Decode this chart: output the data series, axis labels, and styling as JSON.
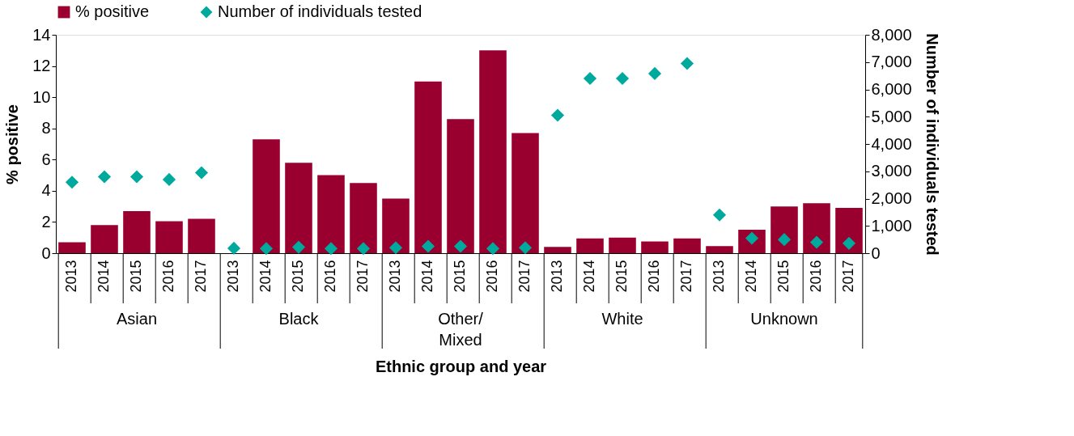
{
  "chart_data": {
    "type": "bar",
    "xlabel": "Ethnic group and year",
    "ylabel": "% positive",
    "y2label": "Number of individuals tested",
    "categories": [
      "2013",
      "2014",
      "2015",
      "2016",
      "2017",
      "2013",
      "2014",
      "2015",
      "2016",
      "2017",
      "2013",
      "2014",
      "2015",
      "2016",
      "2017",
      "2013",
      "2014",
      "2015",
      "2016",
      "2017",
      "2013",
      "2014",
      "2015",
      "2016",
      "2017"
    ],
    "annotations": [
      "Asian",
      "Black",
      "Other/ Mixed",
      "White",
      "Unknown"
    ],
    "series": [
      {
        "name": "% positive",
        "color": "#990030",
        "values": [
          0.7,
          1.8,
          2.7,
          2.05,
          2.2,
          0,
          7.3,
          5.8,
          5.0,
          4.5,
          3.5,
          11.0,
          8.6,
          13.0,
          7.7,
          0.4,
          0.95,
          1.0,
          0.75,
          0.95,
          0.45,
          1.5,
          3.0,
          3.2,
          2.9
        ]
      },
      {
        "name": "Number of individuals tested",
        "type": "scatter",
        "axis": "y2",
        "marker": "diamond",
        "color": "#00a99d",
        "values": [
          2600,
          2800,
          2800,
          2700,
          2950,
          180,
          170,
          220,
          170,
          170,
          200,
          250,
          250,
          170,
          200,
          5050,
          6400,
          6400,
          6580,
          6950,
          1400,
          550,
          500,
          400,
          360
        ]
      }
    ],
    "ylim": [
      0,
      14
    ],
    "yticks": [
      0,
      2,
      4,
      6,
      8,
      10,
      12,
      14
    ],
    "y2lim": [
      0,
      8000
    ],
    "y2ticks": [
      0,
      {
        "value": 1000,
        "label": "1,000"
      },
      {
        "value": 2000,
        "label": "2,000"
      },
      {
        "value": 3000,
        "label": "3,000"
      },
      {
        "value": 4000,
        "label": "4,000"
      },
      {
        "value": 5000,
        "label": "5,000"
      },
      {
        "value": 6000,
        "label": "6,000"
      },
      {
        "value": 7000,
        "label": "7,000"
      },
      {
        "value": 8000,
        "label": "8,000"
      }
    ],
    "grid": false,
    "legend": "top"
  }
}
